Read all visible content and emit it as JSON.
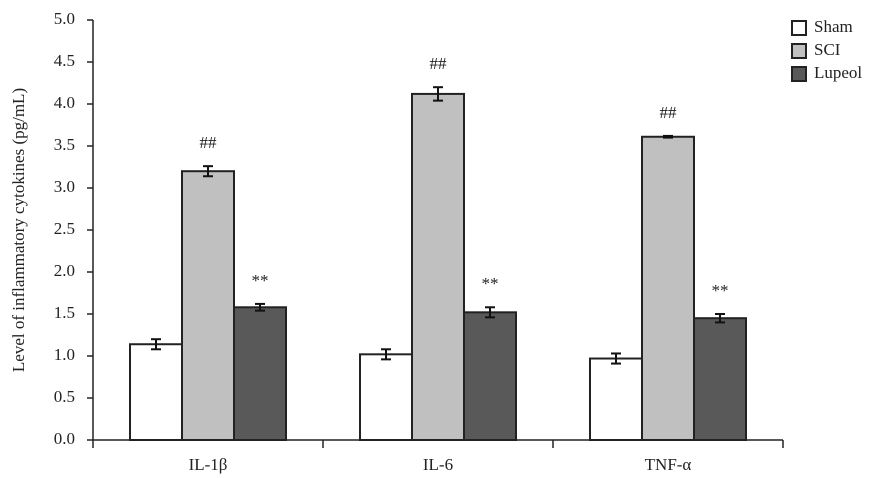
{
  "chart_data": {
    "type": "bar",
    "y_label": "Level of inflammatory cytokines (pg/mL)",
    "categories": [
      "IL-1β",
      "IL-6",
      "TNF-α"
    ],
    "series": [
      {
        "name": "Sham",
        "color": "#ffffff",
        "values": [
          1.14,
          1.02,
          0.97
        ],
        "errors": [
          0.06,
          0.06,
          0.06
        ]
      },
      {
        "name": "SCI",
        "color": "#c0c0c0",
        "values": [
          3.2,
          4.12,
          3.61
        ],
        "errors": [
          0.06,
          0.08,
          0.01
        ],
        "annotations": [
          "##",
          "##",
          "##"
        ]
      },
      {
        "name": "Lupeol",
        "color": "#595959",
        "values": [
          1.58,
          1.52,
          1.45
        ],
        "errors": [
          0.04,
          0.06,
          0.05
        ],
        "annotations": [
          "**",
          "**",
          "**"
        ]
      }
    ],
    "ylim": [
      0,
      5
    ],
    "yticks": [
      {
        "value": 0,
        "label": "0.0"
      },
      0.5,
      {
        "value": 1,
        "label": "1.0"
      },
      1.5,
      {
        "value": 2,
        "label": "2.0"
      },
      2.5,
      {
        "value": 3,
        "label": "3.0"
      },
      3.5,
      {
        "value": 4,
        "label": "4.0"
      },
      4.5,
      {
        "value": 5,
        "label": "5.0"
      }
    ],
    "grid": false,
    "legend": "top-right"
  }
}
